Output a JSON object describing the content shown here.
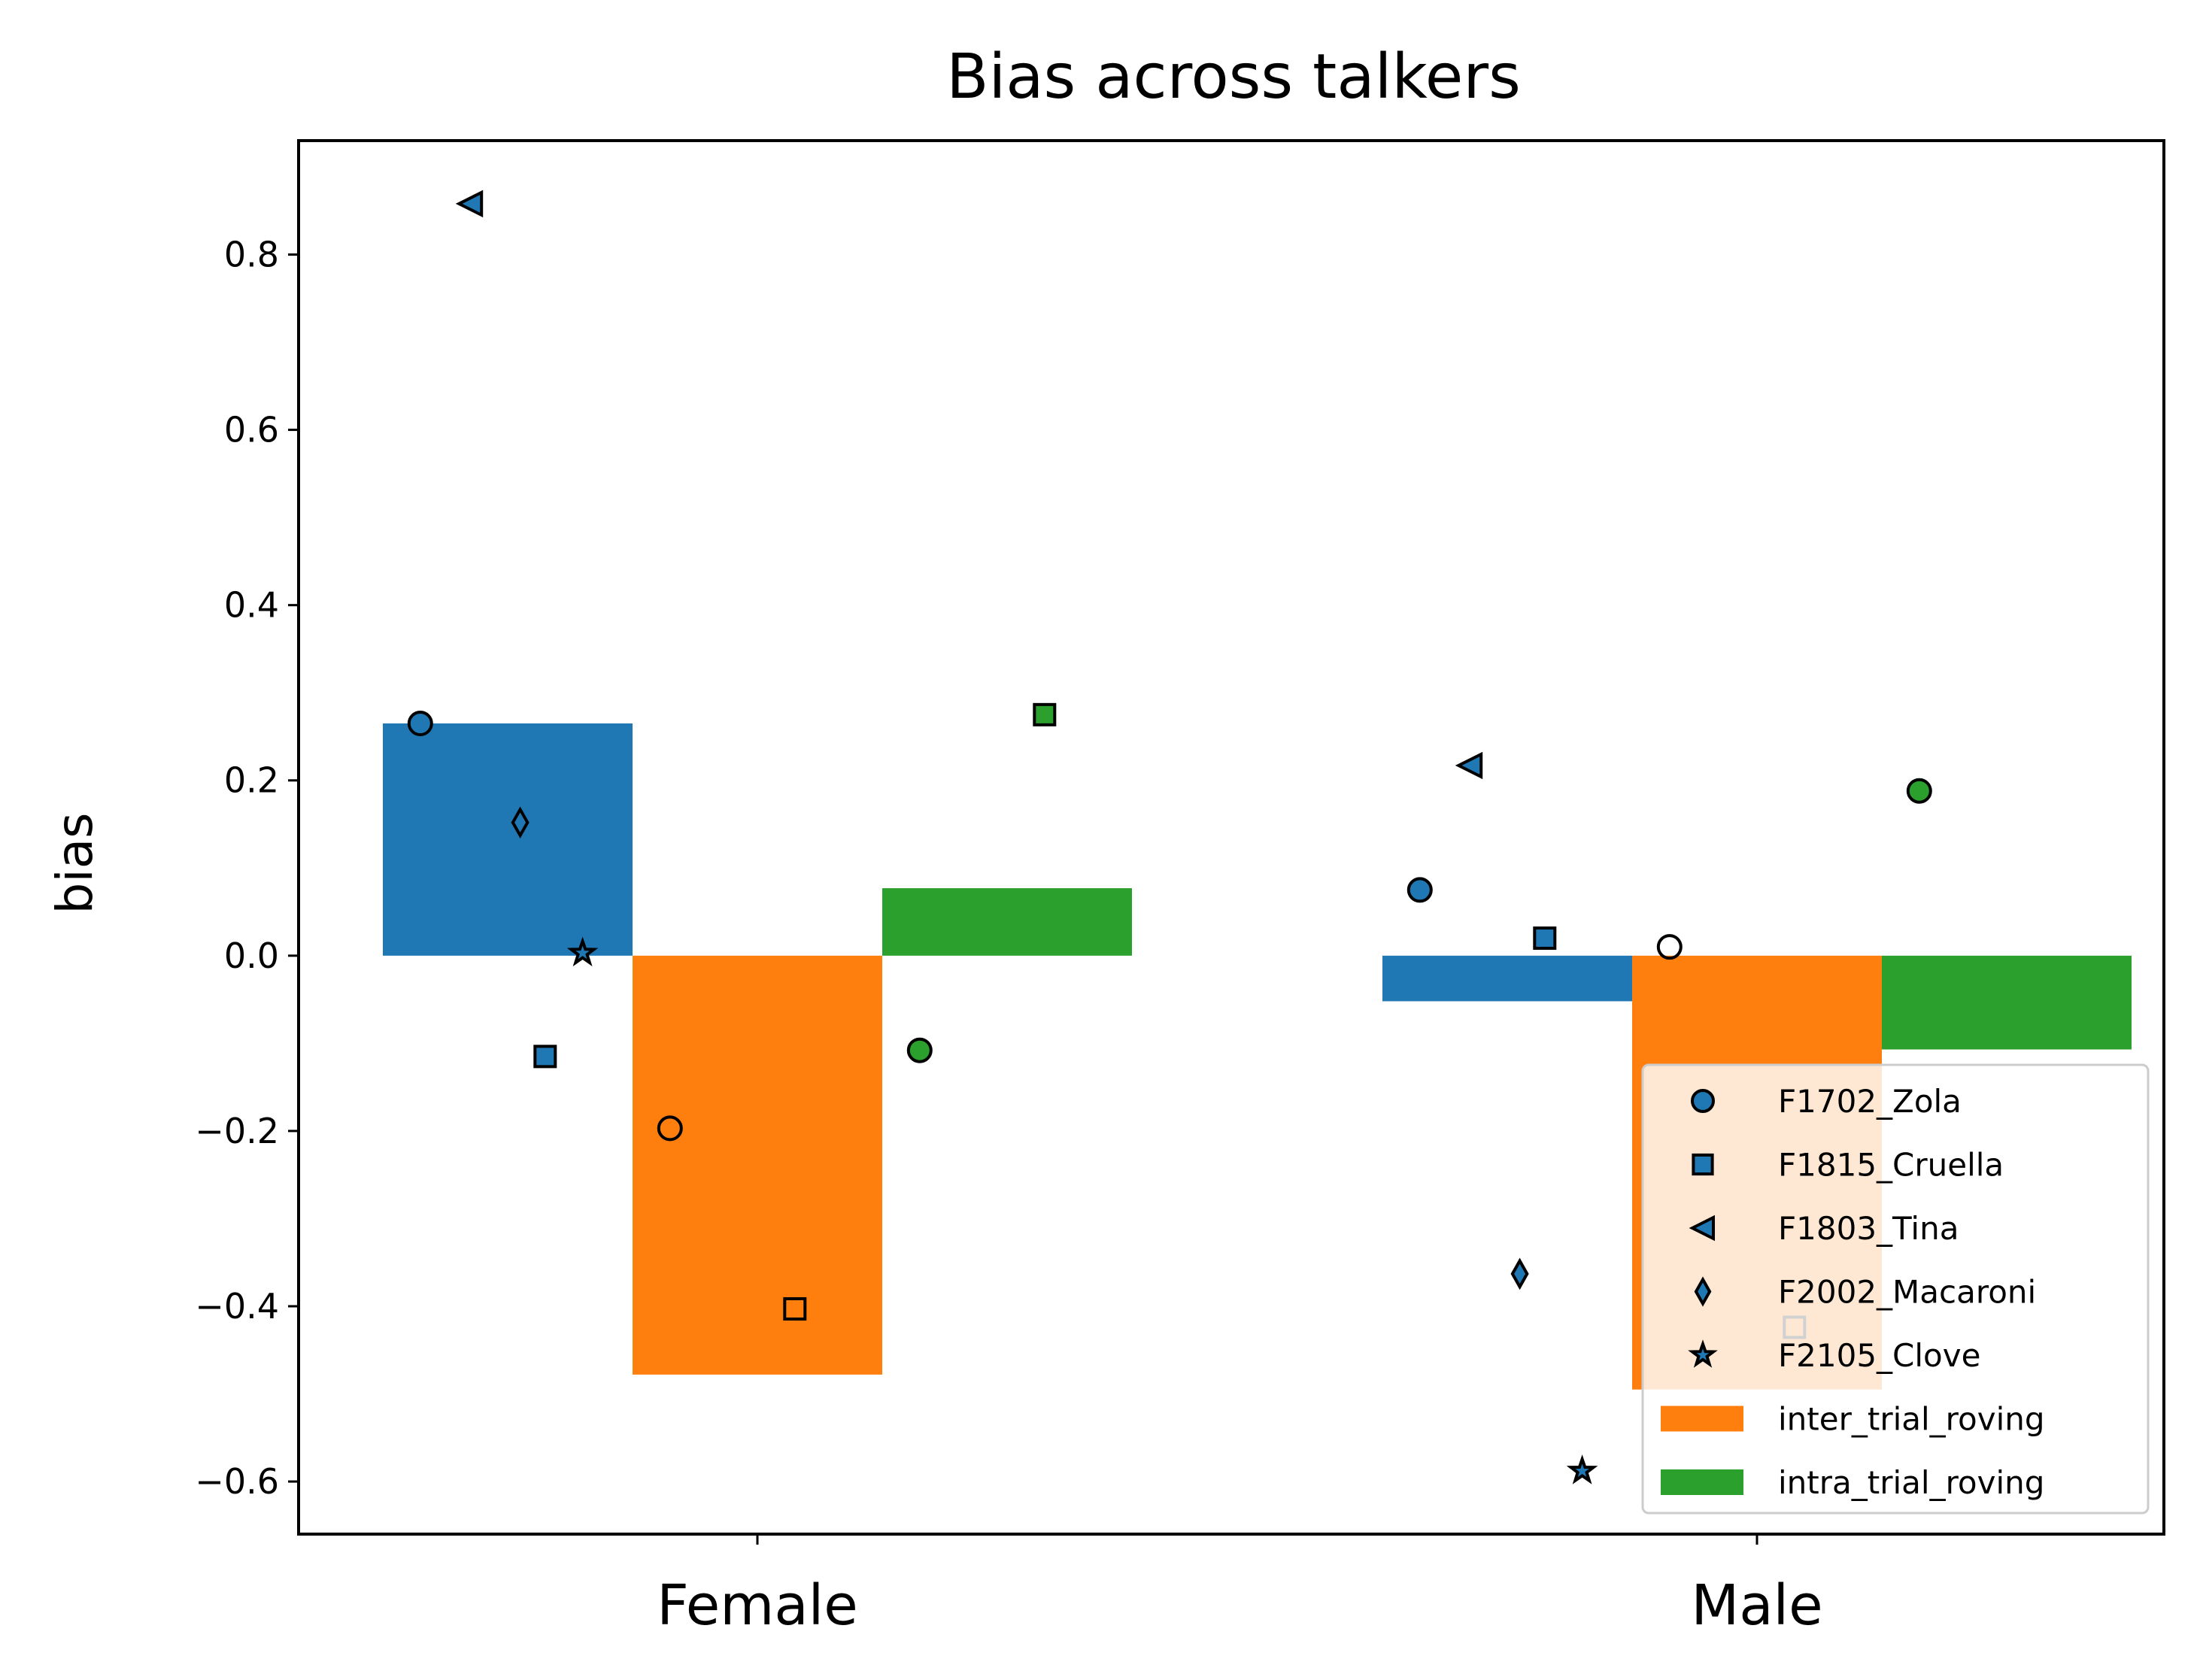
{
  "chart_data": {
    "type": "bar",
    "title": "Bias across talkers",
    "xlabel": "",
    "ylabel": "bias",
    "categories": [
      "Female",
      "Male"
    ],
    "ylim": [
      -0.66,
      0.93
    ],
    "yticks": [
      -0.6,
      -0.4,
      -0.2,
      0.0,
      0.2,
      0.4,
      0.6,
      0.8
    ],
    "ytick_labels": [
      "−0.6",
      "−0.4",
      "−0.2",
      "0.0",
      "0.2",
      "0.4",
      "0.6",
      "0.8"
    ],
    "grid": false,
    "legend_position": "bottom-right",
    "colors": {
      "series0": "#1f77b4",
      "series1": "#ff7f0e",
      "series2": "#2ca02c"
    },
    "series": [
      {
        "values": [
          0.265,
          -0.052
        ]
      },
      {
        "name": "inter_trial_roving",
        "values": [
          -0.478,
          -0.495
        ]
      },
      {
        "name": "intra_trial_roving",
        "values": [
          0.077,
          -0.107
        ]
      }
    ],
    "talkers": [
      {
        "name": "F1702_Zola",
        "marker": "circle",
        "points": [
          [
            0.265,
            -0.197,
            -0.108
          ],
          [
            0.075,
            0.01,
            0.188
          ]
        ]
      },
      {
        "name": "F1815_Cruella",
        "marker": "square",
        "points": [
          [
            -0.115,
            -0.403,
            0.275
          ],
          [
            0.02,
            -0.424,
            null
          ]
        ]
      },
      {
        "name": "F1803_Tina",
        "marker": "triangle-left",
        "points": [
          [
            0.858,
            null,
            null
          ],
          [
            0.217,
            null,
            null
          ]
        ]
      },
      {
        "name": "F2002_Macaroni",
        "marker": "diamond",
        "points": [
          [
            0.152,
            null,
            null
          ],
          [
            -0.363,
            null,
            null
          ]
        ]
      },
      {
        "name": "F2105_Clove",
        "marker": "star",
        "points": [
          [
            0.003,
            null,
            null
          ],
          [
            -0.588,
            null,
            null
          ]
        ]
      }
    ]
  }
}
